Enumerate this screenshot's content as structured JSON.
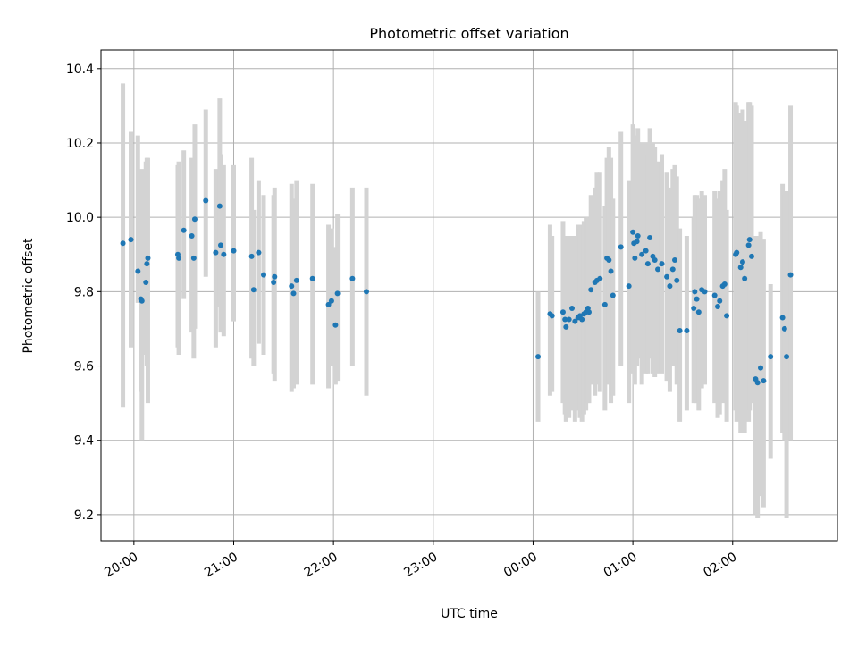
{
  "chart_data": {
    "type": "scatter",
    "title": "Photometric offset variation",
    "xlabel": "UTC time",
    "ylabel": "Photometric offset",
    "x_ticks": [
      "20:00",
      "21:00",
      "22:00",
      "23:00",
      "00:00",
      "01:00",
      "02:00"
    ],
    "x_tick_hours": [
      20,
      21,
      22,
      23,
      24,
      25,
      26
    ],
    "x_unit": "hours UTC (values past 24 fall on the next day)",
    "xlim": [
      19.67,
      27.05
    ],
    "y_ticks": [
      "9.2",
      "9.4",
      "9.6",
      "9.8",
      "10.0",
      "10.2",
      "10.4"
    ],
    "y_tick_values": [
      9.2,
      9.4,
      9.6,
      9.8,
      10.0,
      10.2,
      10.4
    ],
    "ylim": [
      9.13,
      10.45
    ],
    "grid": true,
    "colors": {
      "point": "#1f77b4",
      "errorbar": "#d3d3d3",
      "grid": "#b0b0b0"
    },
    "series": [
      {
        "marker": "point",
        "x": [
          19.89,
          19.97,
          20.04,
          20.07,
          20.08,
          20.12,
          20.13,
          20.14,
          20.44,
          20.45,
          20.5,
          20.58,
          20.6,
          20.61,
          20.72,
          20.82,
          20.86,
          20.87,
          20.9,
          21.0,
          21.18,
          21.2,
          21.25,
          21.3,
          21.4,
          21.41,
          21.58,
          21.6,
          21.63,
          21.79,
          21.95,
          21.98,
          22.02,
          22.04,
          22.19,
          22.33,
          24.05,
          24.17,
          24.19,
          24.3,
          24.32,
          24.33,
          24.36,
          24.39,
          24.42,
          24.45,
          24.47,
          24.49,
          24.51,
          24.53,
          24.55,
          24.56,
          24.58,
          24.62,
          24.64,
          24.67,
          24.72,
          24.74,
          24.76,
          24.78,
          24.8,
          24.88,
          24.96,
          25.0,
          25.01,
          25.02,
          25.04,
          25.05,
          25.09,
          25.13,
          25.15,
          25.17,
          25.2,
          25.22,
          25.25,
          25.29,
          25.34,
          25.37,
          25.4,
          25.42,
          25.44,
          25.47,
          25.54,
          25.61,
          25.62,
          25.64,
          25.66,
          25.69,
          25.72,
          25.82,
          25.85,
          25.87,
          25.9,
          25.92,
          25.94,
          26.03,
          26.04,
          26.08,
          26.1,
          26.12,
          26.16,
          26.17,
          26.19,
          26.23,
          26.25,
          26.28,
          26.31,
          26.38,
          26.5,
          26.52,
          26.54,
          26.58
        ],
        "y": [
          9.93,
          9.94,
          9.855,
          9.78,
          9.775,
          9.825,
          9.875,
          9.89,
          9.9,
          9.89,
          9.965,
          9.95,
          9.89,
          9.995,
          10.045,
          9.905,
          10.03,
          9.925,
          9.9,
          9.91,
          9.895,
          9.805,
          9.905,
          9.845,
          9.825,
          9.84,
          9.815,
          9.795,
          9.83,
          9.835,
          9.765,
          9.775,
          9.71,
          9.795,
          9.835,
          9.8,
          9.625,
          9.74,
          9.735,
          9.745,
          9.725,
          9.705,
          9.725,
          9.755,
          9.72,
          9.73,
          9.735,
          9.725,
          9.74,
          9.745,
          9.755,
          9.745,
          9.805,
          9.825,
          9.83,
          9.835,
          9.765,
          9.89,
          9.885,
          9.855,
          9.79,
          9.92,
          9.815,
          9.96,
          9.93,
          9.89,
          9.935,
          9.95,
          9.9,
          9.91,
          9.875,
          9.945,
          9.895,
          9.885,
          9.86,
          9.875,
          9.84,
          9.815,
          9.86,
          9.885,
          9.83,
          9.695,
          9.695,
          9.755,
          9.8,
          9.78,
          9.745,
          9.805,
          9.8,
          9.79,
          9.76,
          9.775,
          9.815,
          9.82,
          9.735,
          9.9,
          9.905,
          9.865,
          9.88,
          9.835,
          9.925,
          9.94,
          9.895,
          9.565,
          9.555,
          9.595,
          9.56,
          9.625,
          9.73,
          9.7,
          9.625,
          9.845
        ],
        "yerr_low": [
          9.49,
          9.65,
          9.77,
          9.53,
          9.4,
          9.63,
          9.6,
          9.5,
          9.65,
          9.63,
          9.78,
          9.69,
          9.62,
          9.7,
          9.84,
          9.65,
          9.76,
          9.69,
          9.68,
          9.72,
          9.62,
          9.6,
          9.66,
          9.63,
          9.58,
          9.56,
          9.53,
          9.54,
          9.55,
          9.55,
          9.54,
          9.6,
          9.55,
          9.56,
          9.6,
          9.52,
          9.45,
          9.52,
          9.53,
          9.5,
          9.47,
          9.45,
          9.46,
          9.48,
          9.45,
          9.48,
          9.46,
          9.45,
          9.47,
          9.48,
          9.5,
          9.5,
          9.55,
          9.52,
          9.55,
          9.53,
          9.48,
          9.6,
          9.55,
          9.5,
          9.52,
          9.6,
          9.5,
          9.58,
          9.6,
          9.55,
          9.6,
          9.62,
          9.55,
          9.58,
          9.58,
          9.62,
          9.58,
          9.57,
          9.58,
          9.58,
          9.56,
          9.53,
          9.6,
          9.62,
          9.55,
          9.45,
          9.48,
          9.5,
          9.55,
          9.5,
          9.48,
          9.54,
          9.55,
          9.5,
          9.46,
          9.47,
          9.5,
          9.52,
          9.45,
          9.48,
          9.45,
          9.42,
          9.42,
          9.42,
          9.45,
          9.48,
          9.5,
          9.2,
          9.19,
          9.25,
          9.22,
          9.35,
          9.42,
          9.4,
          9.19,
          9.4
        ],
        "yerr_high": [
          10.36,
          10.23,
          10.22,
          10.08,
          10.13,
          10.15,
          10.16,
          10.16,
          10.14,
          10.15,
          10.18,
          10.16,
          10.15,
          10.25,
          10.29,
          10.13,
          10.32,
          10.17,
          10.14,
          10.14,
          10.16,
          10.02,
          10.1,
          10.06,
          10.06,
          10.08,
          10.09,
          10.05,
          10.1,
          10.09,
          9.98,
          9.97,
          9.92,
          10.01,
          10.08,
          10.08,
          9.8,
          9.98,
          9.95,
          9.99,
          9.95,
          9.95,
          9.95,
          9.95,
          9.95,
          9.98,
          9.97,
          9.98,
          9.99,
          10.0,
          10.0,
          9.98,
          10.06,
          10.08,
          10.12,
          10.12,
          10.03,
          10.16,
          10.19,
          10.16,
          10.05,
          10.23,
          10.1,
          10.25,
          10.22,
          10.19,
          10.22,
          10.24,
          10.2,
          10.2,
          10.17,
          10.24,
          10.2,
          10.19,
          10.15,
          10.17,
          10.12,
          10.08,
          10.13,
          10.14,
          10.11,
          9.97,
          9.95,
          10.0,
          10.06,
          10.06,
          10.05,
          10.07,
          10.06,
          10.07,
          10.05,
          10.07,
          10.1,
          10.13,
          10.02,
          10.31,
          10.3,
          10.28,
          10.29,
          10.26,
          10.31,
          10.31,
          10.3,
          9.95,
          9.95,
          9.96,
          9.94,
          9.82,
          10.09,
          10.06,
          10.07,
          10.3
        ]
      }
    ]
  }
}
